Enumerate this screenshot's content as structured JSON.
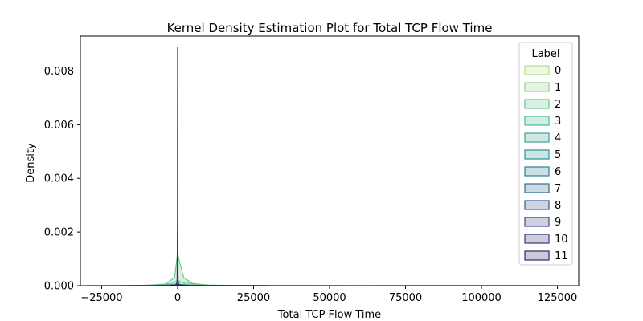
{
  "chart_data": {
    "type": "area",
    "title": "Kernel Density Estimation Plot for Total TCP Flow Time",
    "xlabel": "Total TCP Flow Time",
    "ylabel": "Density",
    "xlim": [
      -32000,
      132000
    ],
    "ylim": [
      0,
      0.0093
    ],
    "xticks": [
      -25000,
      0,
      25000,
      50000,
      75000,
      100000,
      125000
    ],
    "xtick_labels": [
      "−25000",
      "0",
      "25000",
      "50000",
      "75000",
      "100000",
      "125000"
    ],
    "yticks": [
      0,
      0.002,
      0.004,
      0.006,
      0.008
    ],
    "ytick_labels": [
      "0.000",
      "0.002",
      "0.004",
      "0.006",
      "0.008"
    ],
    "grid": false,
    "legend": {
      "title": "Label",
      "placement": "top-right"
    },
    "series": [
      {
        "name": "0",
        "color": "#b8de87",
        "points": [
          [
            -15000,
            0
          ],
          [
            -3000,
            2e-05
          ],
          [
            0,
            6e-05
          ],
          [
            3000,
            2e-05
          ],
          [
            20000,
            0
          ]
        ]
      },
      {
        "name": "1",
        "color": "#8fd08a",
        "points": [
          [
            -10000,
            0
          ],
          [
            -2000,
            8e-05
          ],
          [
            0,
            0.0002
          ],
          [
            2000,
            0.0001
          ],
          [
            10000,
            2e-05
          ],
          [
            30000,
            0
          ]
        ]
      },
      {
        "name": "2",
        "color": "#6cc58e",
        "points": [
          [
            -12000,
            0
          ],
          [
            -4000,
            6e-05
          ],
          [
            -1000,
            0.0003
          ],
          [
            0,
            0.0012
          ],
          [
            600,
            0.0009
          ],
          [
            2000,
            0.0003
          ],
          [
            5000,
            8e-05
          ],
          [
            10000,
            2e-05
          ],
          [
            20000,
            0
          ]
        ]
      },
      {
        "name": "3",
        "color": "#4fb792",
        "points": [
          [
            -20000,
            0
          ],
          [
            0,
            3e-05
          ],
          [
            20000,
            5e-06
          ],
          [
            60000,
            2e-06
          ],
          [
            100000,
            5e-06
          ],
          [
            125000,
            0
          ]
        ]
      },
      {
        "name": "4",
        "color": "#3ba694",
        "points": [
          [
            -8000,
            0
          ],
          [
            -1000,
            4e-05
          ],
          [
            0,
            0.0001
          ],
          [
            1000,
            4e-05
          ],
          [
            8000,
            0
          ]
        ]
      },
      {
        "name": "5",
        "color": "#309395",
        "points": [
          [
            -6000,
            0
          ],
          [
            0,
            5e-05
          ],
          [
            6000,
            0
          ]
        ]
      },
      {
        "name": "6",
        "color": "#2b8294",
        "points": [
          [
            -5000,
            0
          ],
          [
            0,
            4e-05
          ],
          [
            5000,
            0
          ]
        ]
      },
      {
        "name": "7",
        "color": "#2c6f92",
        "points": [
          [
            -4000,
            0
          ],
          [
            0,
            3e-05
          ],
          [
            4000,
            0
          ]
        ]
      },
      {
        "name": "8",
        "color": "#355c8c",
        "points": [
          [
            -30000,
            0
          ],
          [
            -5000,
            5e-06
          ],
          [
            0,
            2e-05
          ],
          [
            5000,
            5e-06
          ],
          [
            30000,
            0
          ]
        ]
      },
      {
        "name": "9",
        "color": "#3a4a84",
        "points": [
          [
            -3000,
            0
          ],
          [
            0,
            2e-05
          ],
          [
            3000,
            0
          ]
        ]
      },
      {
        "name": "10",
        "color": "#39397a",
        "points": [
          [
            -2000,
            0
          ],
          [
            0,
            2e-05
          ],
          [
            2000,
            0
          ]
        ]
      },
      {
        "name": "11",
        "color": "#322a63",
        "points": [
          [
            -400,
            0
          ],
          [
            -150,
            0.0002
          ],
          [
            -40,
            0.0025
          ],
          [
            0,
            0.0089
          ],
          [
            40,
            0.0025
          ],
          [
            150,
            0.0002
          ],
          [
            400,
            0
          ]
        ]
      }
    ]
  }
}
